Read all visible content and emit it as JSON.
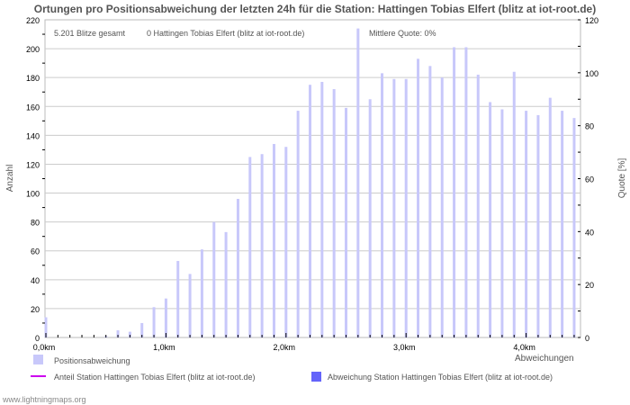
{
  "chart_data": {
    "type": "bar",
    "title": "Ortungen pro Positionsabweichung der letzten 24h für die Station: Hattingen Tobias Elfert (blitz at iot-root.de)",
    "stats": {
      "total": "5.201 Blitze gesamt",
      "station": "0 Hattingen Tobias Elfert (blitz at iot-root.de)",
      "quote": "Mittlere Quote: 0%"
    },
    "xlabel": "Abweichungen",
    "ylabel": "Anzahl",
    "y2label": "Quote [%]",
    "ylim": [
      0,
      220
    ],
    "y2lim": [
      0,
      120
    ],
    "yticks": [
      0,
      20,
      40,
      60,
      80,
      100,
      120,
      140,
      160,
      180,
      200,
      220
    ],
    "y2ticks": [
      0,
      20,
      40,
      60,
      80,
      100,
      120
    ],
    "xticks": [
      {
        "v": 0,
        "label": "0,0km"
      },
      {
        "v": 1,
        "label": "1,0km"
      },
      {
        "v": 2,
        "label": "2,0km"
      },
      {
        "v": 3,
        "label": "3,0km"
      },
      {
        "v": 4,
        "label": "4,0km"
      }
    ],
    "x_km": [
      0.0,
      0.1,
      0.2,
      0.3,
      0.4,
      0.5,
      0.6,
      0.7,
      0.8,
      0.9,
      1.0,
      1.1,
      1.2,
      1.3,
      1.4,
      1.5,
      1.6,
      1.7,
      1.8,
      1.9,
      2.0,
      2.1,
      2.2,
      2.3,
      2.4,
      2.5,
      2.6,
      2.7,
      2.8,
      2.9,
      3.0,
      3.1,
      3.2,
      3.3,
      3.4,
      3.5,
      3.6,
      3.7,
      3.8,
      3.9,
      4.0,
      4.1,
      4.2,
      4.3,
      4.4
    ],
    "series": [
      {
        "name": "Positionsabweichung",
        "color": "#c8c8fa",
        "values": [
          14,
          0,
          0,
          0,
          0,
          1,
          5,
          4,
          10,
          21,
          27,
          53,
          44,
          61,
          80,
          73,
          96,
          125,
          127,
          134,
          132,
          157,
          175,
          177,
          172,
          159,
          214,
          165,
          183,
          179,
          179,
          193,
          188,
          180,
          201,
          201,
          182,
          163,
          158,
          184,
          157,
          154,
          166,
          157,
          152
        ]
      },
      {
        "name": "Abweichung Station Hattingen Tobias Elfert (blitz at iot-root.de)",
        "color": "#6464fa",
        "values": [
          0,
          0,
          0,
          0,
          0,
          0,
          0,
          0,
          0,
          0,
          0,
          0,
          0,
          0,
          0,
          0,
          0,
          0,
          0,
          0,
          0,
          0,
          0,
          0,
          0,
          0,
          0,
          0,
          0,
          0,
          0,
          0,
          0,
          0,
          0,
          0,
          0,
          0,
          0,
          0,
          0,
          0,
          0,
          0,
          0
        ]
      },
      {
        "name": "Anteil Station Hattingen Tobias Elfert (blitz at iot-root.de)",
        "color": "#cc00ee",
        "type": "line",
        "values": []
      }
    ],
    "grid": true
  },
  "footer": "www.lightningmaps.org"
}
